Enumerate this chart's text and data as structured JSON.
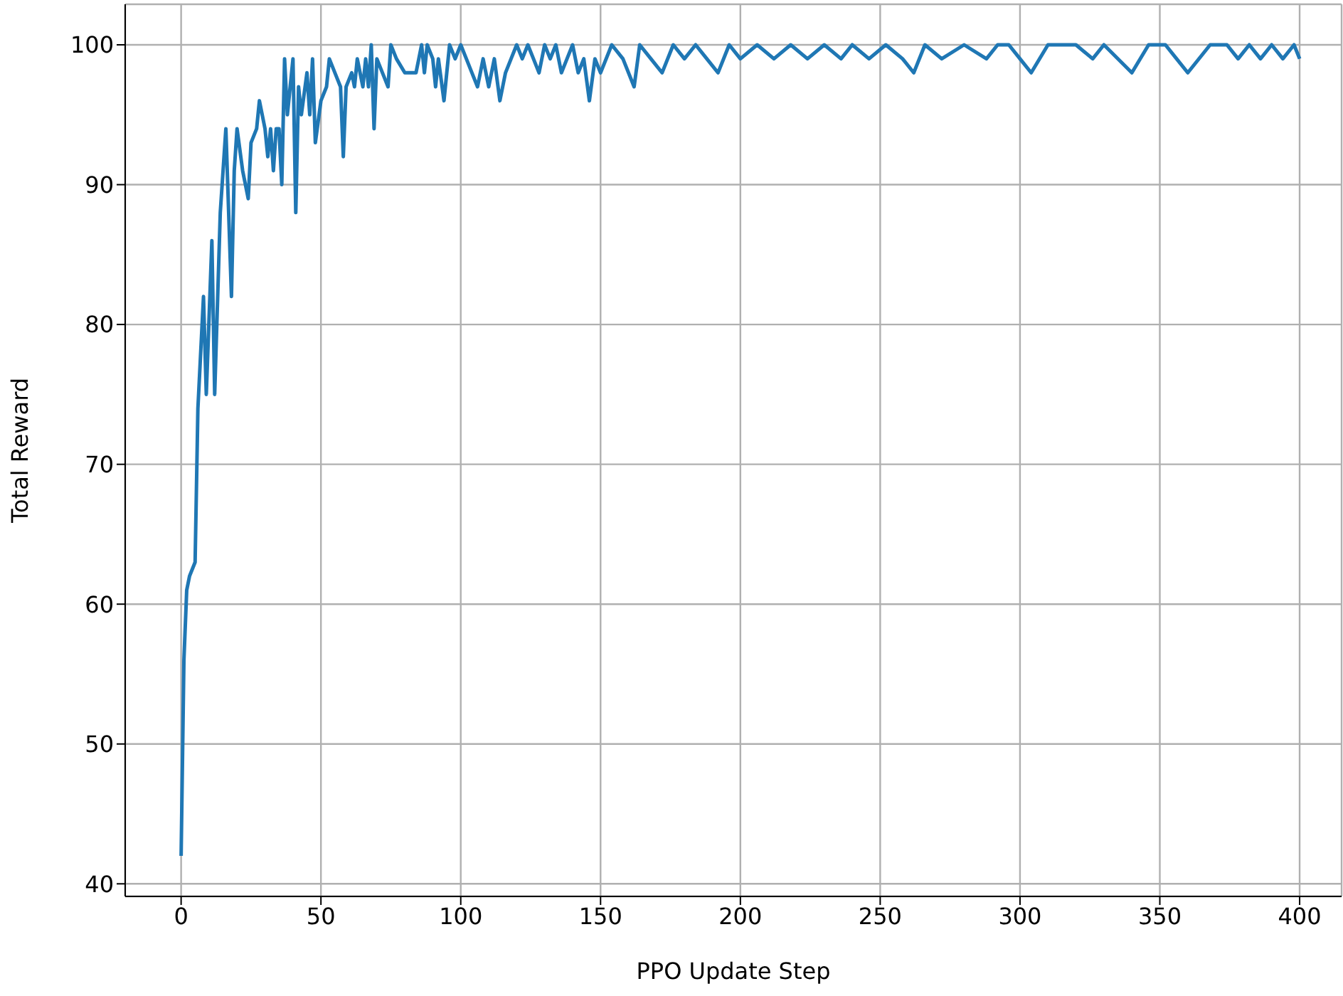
{
  "chart_data": {
    "type": "line",
    "xlabel": "PPO Update Step",
    "ylabel": "Total Reward",
    "x": [
      0,
      1,
      2,
      3,
      5,
      6,
      8,
      9,
      11,
      12,
      14,
      16,
      18,
      19,
      20,
      22,
      24,
      25,
      27,
      28,
      30,
      31,
      32,
      33,
      34,
      35,
      36,
      37,
      38,
      40,
      41,
      42,
      43,
      45,
      46,
      47,
      48,
      50,
      52,
      53,
      55,
      57,
      58,
      59,
      61,
      62,
      63,
      65,
      66,
      67,
      68,
      69,
      70,
      72,
      74,
      75,
      77,
      80,
      82,
      84,
      85,
      86,
      87,
      88,
      90,
      91,
      92,
      94,
      96,
      98,
      100,
      102,
      104,
      106,
      108,
      110,
      112,
      114,
      116,
      118,
      120,
      122,
      124,
      126,
      128,
      130,
      132,
      134,
      136,
      138,
      140,
      142,
      144,
      146,
      148,
      150,
      154,
      158,
      162,
      164,
      168,
      172,
      176,
      180,
      184,
      188,
      192,
      196,
      200,
      206,
      212,
      218,
      224,
      230,
      236,
      240,
      246,
      252,
      258,
      262,
      266,
      272,
      280,
      288,
      292,
      296,
      300,
      304,
      310,
      320,
      326,
      330,
      340,
      346,
      352,
      356,
      360,
      368,
      374,
      378,
      382,
      386,
      390,
      394,
      398,
      400
    ],
    "series": [
      {
        "color": "#1f77b4",
        "values": [
          42,
          56,
          61,
          62,
          63,
          74,
          82,
          75,
          86,
          75,
          88,
          94,
          82,
          91,
          94,
          91,
          89,
          93,
          94,
          96,
          94,
          92,
          94,
          91,
          94,
          94,
          90,
          99,
          95,
          99,
          88,
          97,
          95,
          98,
          95,
          99,
          93,
          96,
          97,
          99,
          98,
          97,
          92,
          97,
          98,
          97,
          99,
          97,
          99,
          97,
          100,
          94,
          99,
          98,
          97,
          100,
          99,
          98,
          98,
          98,
          99,
          100,
          98,
          100,
          99,
          97,
          99,
          96,
          100,
          99,
          100,
          99,
          98,
          97,
          99,
          97,
          99,
          96,
          98,
          99,
          100,
          99,
          100,
          99,
          98,
          100,
          99,
          100,
          98,
          99,
          100,
          98,
          99,
          96,
          99,
          98,
          100,
          99,
          97,
          100,
          99,
          98,
          100,
          99,
          100,
          99,
          98,
          100,
          99,
          100,
          99,
          100,
          99,
          100,
          99,
          100,
          99,
          100,
          99,
          98,
          100,
          99,
          100,
          99,
          100,
          100,
          99,
          98,
          100,
          100,
          99,
          100,
          98,
          100,
          100,
          99,
          98,
          100,
          100,
          99,
          100,
          99,
          100,
          99,
          100,
          99
        ]
      }
    ],
    "xlim": [
      -20,
      415
    ],
    "ylim": [
      39.1,
      102.9
    ],
    "xticks": [
      0,
      50,
      100,
      150,
      200,
      250,
      300,
      350,
      400
    ],
    "yticks": [
      40,
      50,
      60,
      70,
      80,
      90,
      100
    ],
    "grid": true,
    "marker": "none",
    "line_style": "solid",
    "legend": false
  }
}
